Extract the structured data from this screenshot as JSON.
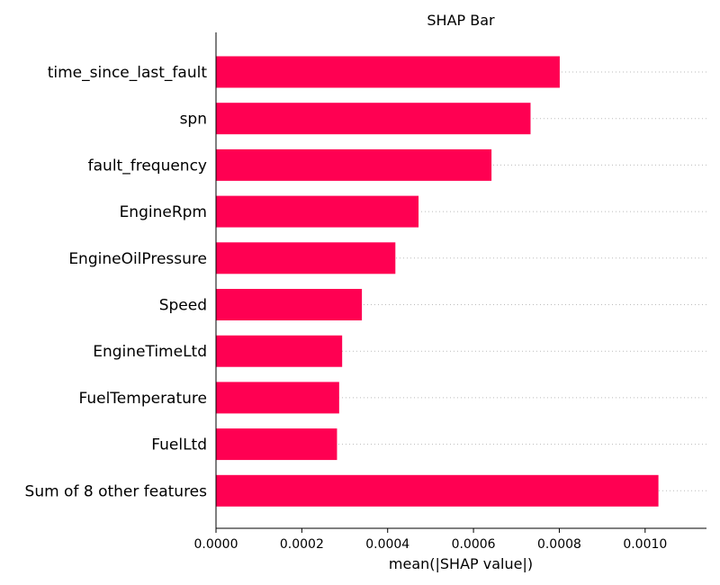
{
  "chart_data": {
    "type": "bar",
    "orientation": "horizontal",
    "title": "SHAP Bar",
    "xlabel": "mean(|SHAP value|)",
    "ylabel": "",
    "categories": [
      "time_since_last_fault",
      "spn",
      "fault_frequency",
      "EngineRpm",
      "EngineOilPressure",
      "Speed",
      "EngineTimeLtd",
      "FuelTemperature",
      "FuelLtd",
      "Sum of 8 other features"
    ],
    "values": [
      0.000801,
      0.000733,
      0.000642,
      0.000472,
      0.000418,
      0.00034,
      0.000294,
      0.000287,
      0.000282,
      0.001031
    ],
    "xlim": [
      0,
      0.001143
    ],
    "xticks": [
      "0.0000",
      "0.0002",
      "0.0004",
      "0.0006",
      "0.0008",
      "0.0010"
    ],
    "xtick_values": [
      0,
      0.0002,
      0.0004,
      0.0006,
      0.0008,
      0.001
    ],
    "bar_color": "#ff0052",
    "grid": false,
    "legend": "none"
  }
}
